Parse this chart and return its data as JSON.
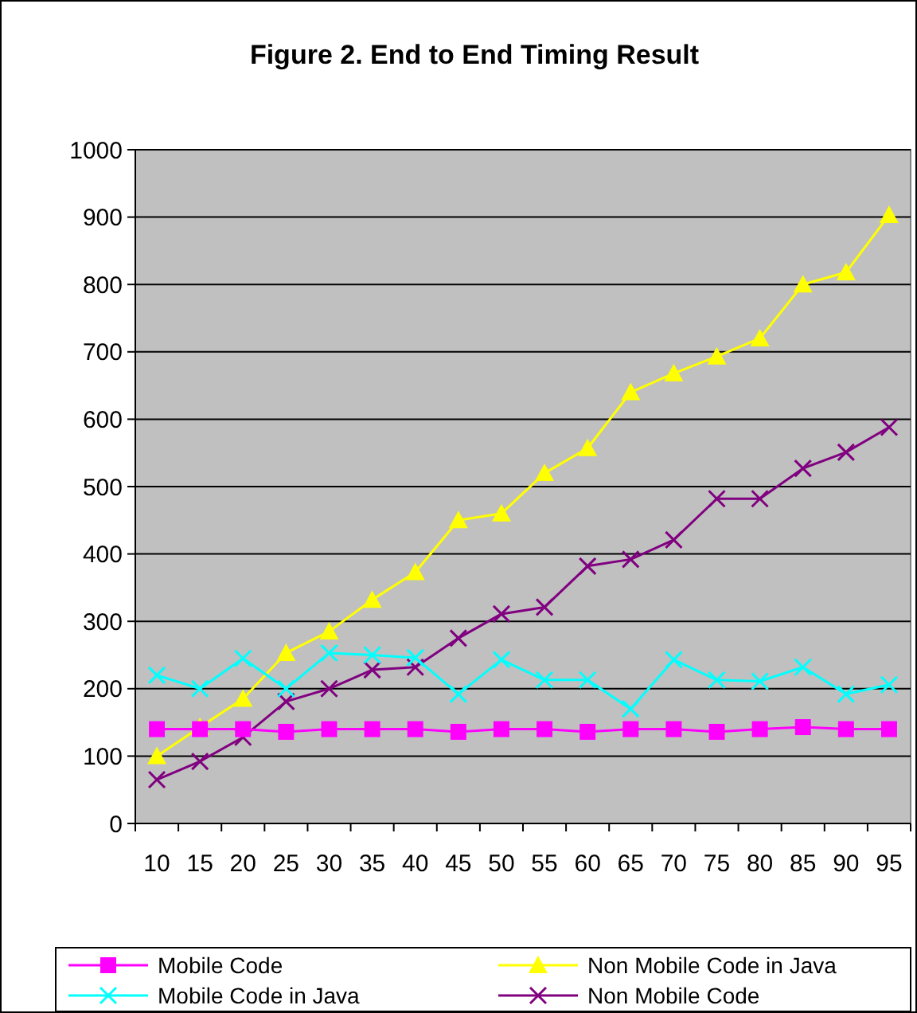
{
  "chart_data": {
    "type": "line",
    "title": "Figure 2. End to End Timing Result",
    "categories": [
      "10",
      "15",
      "20",
      "25",
      "30",
      "35",
      "40",
      "45",
      "50",
      "55",
      "60",
      "65",
      "70",
      "75",
      "80",
      "85",
      "90",
      "95"
    ],
    "series": [
      {
        "name": "Mobile Code",
        "color": "#ff00ff",
        "marker": "square",
        "values": [
          140,
          140,
          140,
          136,
          140,
          140,
          140,
          136,
          140,
          140,
          136,
          140,
          140,
          136,
          140,
          143,
          140,
          140
        ]
      },
      {
        "name": "Mobile Code in Java",
        "color": "#00ffff",
        "marker": "cross",
        "values": [
          220,
          200,
          245,
          200,
          253,
          250,
          246,
          192,
          243,
          213,
          213,
          170,
          243,
          213,
          211,
          232,
          192,
          206
        ]
      },
      {
        "name": "Non Mobile Code in Java",
        "color": "#ffff00",
        "marker": "triangle",
        "values": [
          100,
          143,
          185,
          253,
          285,
          332,
          373,
          450,
          460,
          520,
          557,
          640,
          668,
          693,
          720,
          800,
          818,
          903
        ]
      },
      {
        "name": "Non Mobile Code",
        "color": "#800080",
        "marker": "cross",
        "values": [
          65,
          92,
          128,
          181,
          200,
          228,
          232,
          275,
          311,
          321,
          382,
          392,
          421,
          482,
          482,
          527,
          551,
          588
        ]
      }
    ],
    "ylim": [
      0,
      1000
    ],
    "yticks": [
      0,
      100,
      200,
      300,
      400,
      500,
      600,
      700,
      800,
      900,
      1000
    ],
    "grid": "y",
    "legend": "bottom",
    "line_style": "solid"
  }
}
